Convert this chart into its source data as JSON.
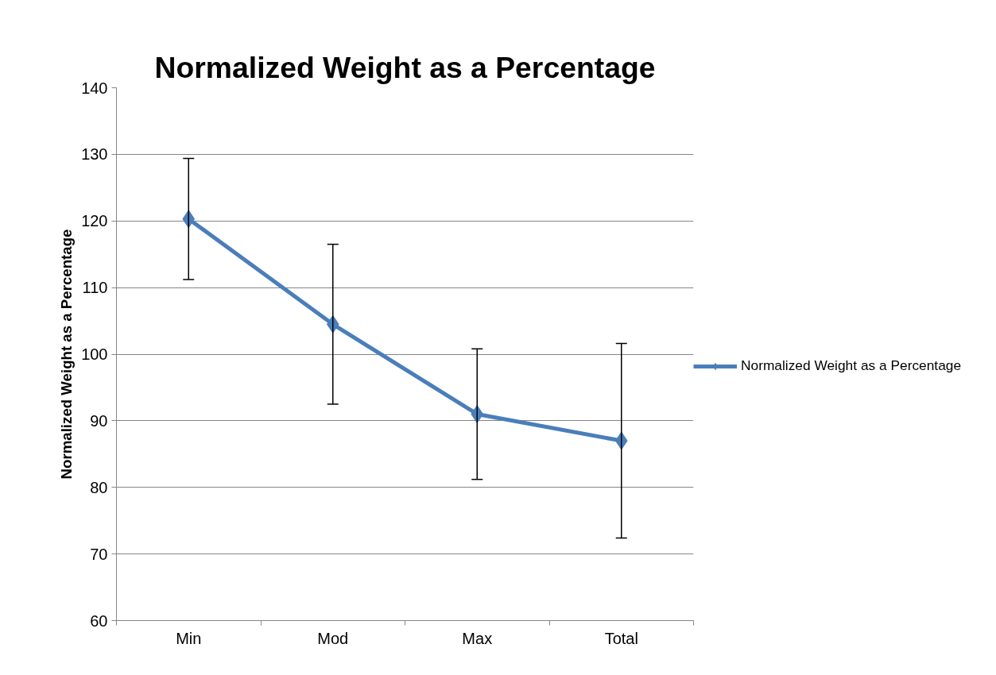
{
  "chart_data": {
    "type": "line",
    "title": "Normalized Weight as a Percentage",
    "ylabel": "Normalized Weight as a Percentage",
    "categories": [
      "Min",
      "Mod",
      "Max",
      "Total"
    ],
    "series": [
      {
        "name": "Normalized Weight as a Percentage",
        "color": "#4a7ebb",
        "values": [
          120.3,
          104.5,
          91.0,
          87.0
        ],
        "errors": [
          9.1,
          12.0,
          9.8,
          14.6
        ]
      }
    ],
    "ylim": [
      60,
      140
    ],
    "yticks": [
      60,
      70,
      80,
      90,
      100,
      110,
      120,
      130,
      140
    ],
    "grid": "y",
    "legend": "right",
    "marker": "diamond",
    "line_style": "solid"
  }
}
